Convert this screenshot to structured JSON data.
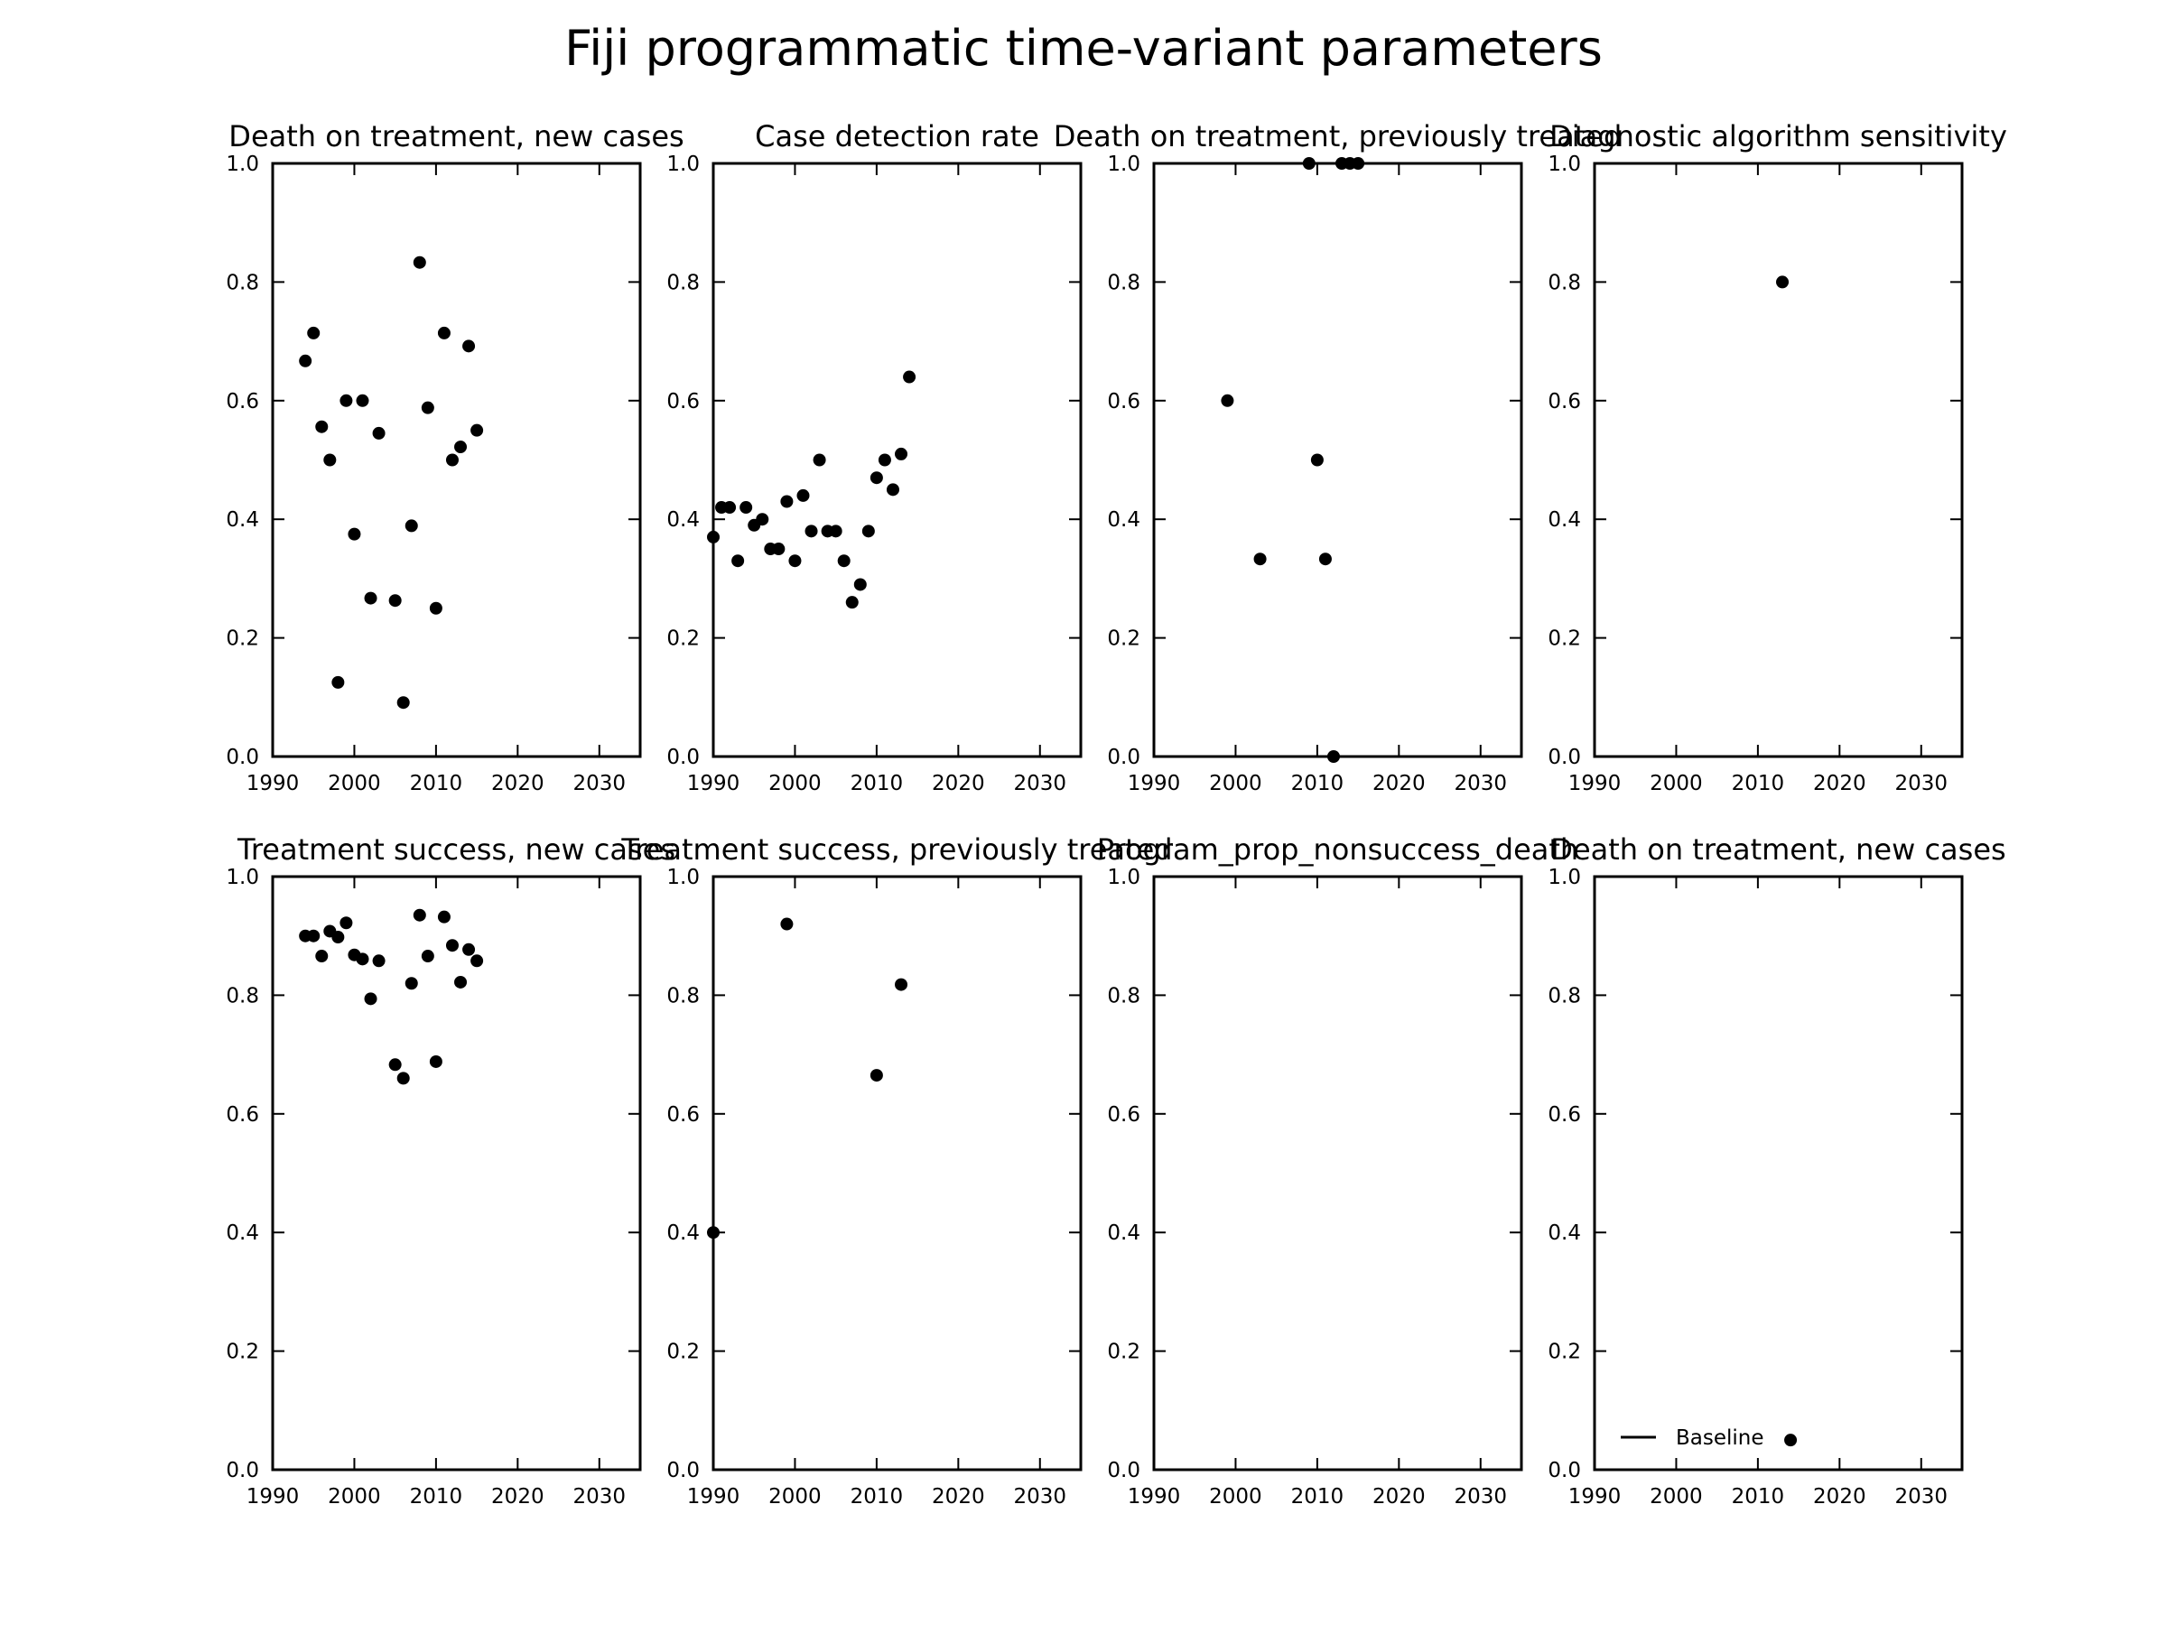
{
  "figure": {
    "title": "Fiji programmatic time-variant parameters"
  },
  "chart_data": [
    {
      "type": "scatter",
      "title": "Death on treatment, new cases",
      "xlim": [
        1990,
        2035
      ],
      "ylim": [
        0.0,
        1.0
      ],
      "xticks": [
        1990,
        2000,
        2010,
        2020,
        2030
      ],
      "yticks": [
        "0.0",
        "0.2",
        "0.4",
        "0.6",
        "0.8",
        "1.0"
      ],
      "series": [
        {
          "x": [
            1994,
            1995,
            1996,
            1997,
            1998,
            1999,
            2000,
            2001,
            2002,
            2003,
            2005,
            2006,
            2007,
            2008,
            2009,
            2010,
            2011,
            2012,
            2013,
            2014,
            2015
          ],
          "y": [
            0.667,
            0.714,
            0.556,
            0.5,
            0.125,
            0.6,
            0.375,
            0.6,
            0.267,
            0.545,
            0.263,
            0.091,
            0.389,
            0.833,
            0.588,
            0.25,
            0.714,
            0.5,
            0.522,
            0.692,
            0.55
          ]
        }
      ]
    },
    {
      "type": "scatter",
      "title": "Case detection rate",
      "xlim": [
        1990,
        2035
      ],
      "ylim": [
        0.0,
        1.0
      ],
      "xticks": [
        1990,
        2000,
        2010,
        2020,
        2030
      ],
      "yticks": [
        "0.0",
        "0.2",
        "0.4",
        "0.6",
        "0.8",
        "1.0"
      ],
      "series": [
        {
          "x": [
            1990,
            1991,
            1992,
            1993,
            1994,
            1995,
            1996,
            1997,
            1998,
            1999,
            2000,
            2001,
            2002,
            2003,
            2004,
            2005,
            2006,
            2007,
            2008,
            2009,
            2010,
            2011,
            2012,
            2013,
            2014
          ],
          "y": [
            0.37,
            0.42,
            0.42,
            0.33,
            0.42,
            0.39,
            0.4,
            0.35,
            0.35,
            0.43,
            0.33,
            0.44,
            0.38,
            0.5,
            0.38,
            0.38,
            0.33,
            0.26,
            0.29,
            0.38,
            0.47,
            0.5,
            0.45,
            0.51,
            0.64
          ]
        }
      ]
    },
    {
      "type": "scatter",
      "title": "Death on treatment, previously treated",
      "xlim": [
        1990,
        2035
      ],
      "ylim": [
        0.0,
        1.0
      ],
      "xticks": [
        1990,
        2000,
        2010,
        2020,
        2030
      ],
      "yticks": [
        "0.0",
        "0.2",
        "0.4",
        "0.6",
        "0.8",
        "1.0"
      ],
      "series": [
        {
          "x": [
            1999,
            2003,
            2009,
            2010,
            2011,
            2012,
            2013,
            2014,
            2015
          ],
          "y": [
            0.6,
            0.333,
            1.0,
            0.5,
            0.333,
            0.0,
            1.0,
            1.0,
            1.0
          ]
        }
      ]
    },
    {
      "type": "scatter",
      "title": "Diagnostic algorithm sensitivity",
      "xlim": [
        1990,
        2035
      ],
      "ylim": [
        0.0,
        1.0
      ],
      "xticks": [
        1990,
        2000,
        2010,
        2020,
        2030
      ],
      "yticks": [
        "0.0",
        "0.2",
        "0.4",
        "0.6",
        "0.8",
        "1.0"
      ],
      "series": [
        {
          "x": [
            2013
          ],
          "y": [
            0.8
          ]
        }
      ]
    },
    {
      "type": "scatter",
      "title": "Treatment success, new cases",
      "xlim": [
        1990,
        2035
      ],
      "ylim": [
        0.0,
        1.0
      ],
      "xticks": [
        1990,
        2000,
        2010,
        2020,
        2030
      ],
      "yticks": [
        "0.0",
        "0.2",
        "0.4",
        "0.6",
        "0.8",
        "1.0"
      ],
      "series": [
        {
          "x": [
            1994,
            1995,
            1996,
            1997,
            1998,
            1999,
            2000,
            2001,
            2002,
            2003,
            2005,
            2006,
            2007,
            2008,
            2009,
            2010,
            2011,
            2012,
            2013,
            2014,
            2015
          ],
          "y": [
            0.9,
            0.9,
            0.866,
            0.908,
            0.898,
            0.922,
            0.868,
            0.861,
            0.794,
            0.858,
            0.683,
            0.66,
            0.82,
            0.935,
            0.866,
            0.688,
            0.932,
            0.884,
            0.822,
            0.877,
            0.858
          ]
        }
      ]
    },
    {
      "type": "scatter",
      "title": "Treatment success, previously treated",
      "xlim": [
        1990,
        2035
      ],
      "ylim": [
        0.0,
        1.0
      ],
      "xticks": [
        1990,
        2000,
        2010,
        2020,
        2030
      ],
      "yticks": [
        "0.0",
        "0.2",
        "0.4",
        "0.6",
        "0.8",
        "1.0"
      ],
      "series": [
        {
          "x": [
            1990,
            1999,
            2010,
            2013
          ],
          "y": [
            0.4,
            0.92,
            0.665,
            0.818
          ]
        }
      ]
    },
    {
      "type": "scatter",
      "title": "Program_prop_nonsuccess_death",
      "xlim": [
        1990,
        2035
      ],
      "ylim": [
        0.0,
        1.0
      ],
      "xticks": [
        1990,
        2000,
        2010,
        2020,
        2030
      ],
      "yticks": [
        "0.0",
        "0.2",
        "0.4",
        "0.6",
        "0.8",
        "1.0"
      ],
      "series": [
        {
          "x": [],
          "y": []
        }
      ]
    },
    {
      "type": "scatter",
      "title": "Death on treatment, new cases",
      "xlim": [
        1990,
        2035
      ],
      "ylim": [
        0.0,
        1.0
      ],
      "xticks": [
        1990,
        2000,
        2010,
        2020,
        2030
      ],
      "yticks": [
        "0.0",
        "0.2",
        "0.4",
        "0.6",
        "0.8",
        "1.0"
      ],
      "series": [
        {
          "x": [
            2014
          ],
          "y": [
            0.05
          ]
        }
      ],
      "legend": {
        "placement": "lower-left",
        "entries": [
          {
            "label": "Baseline",
            "marker": "line"
          }
        ]
      }
    }
  ]
}
